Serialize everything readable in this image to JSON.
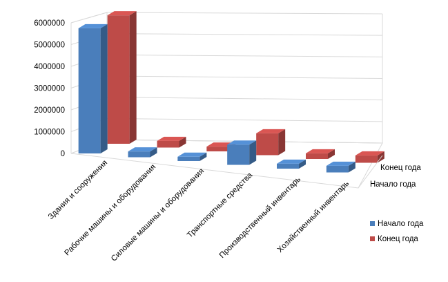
{
  "chart_data": {
    "type": "bar",
    "categories": [
      "Здания и сооружения",
      "Рабочие машины и оборудования",
      "Силовые машины и оборудования",
      "Транспортные средства",
      "Производственный инвентарь",
      "Хозяйственный инвентарь"
    ],
    "series": [
      {
        "name": "Начало года",
        "values": [
          5750000,
          260000,
          190000,
          880000,
          210000,
          280000
        ],
        "color": "#4A7EBB"
      },
      {
        "name": "Конец года",
        "values": [
          5900000,
          300000,
          210000,
          950000,
          240000,
          310000
        ],
        "color": "#BE4B48"
      }
    ],
    "depth_axis_labels": [
      "Конец года",
      "Начало года"
    ],
    "y_ticks": [
      "0",
      "1000000",
      "2000000",
      "3000000",
      "4000000",
      "5000000",
      "6000000"
    ],
    "ylim": [
      0,
      6000000
    ],
    "grid": true,
    "legend_position": "right",
    "legend": [
      {
        "label": "Начало года",
        "color": "#4A7EBB"
      },
      {
        "label": "Конец года",
        "color": "#BE4B48"
      }
    ],
    "title": "",
    "xlabel": "",
    "ylabel": ""
  }
}
